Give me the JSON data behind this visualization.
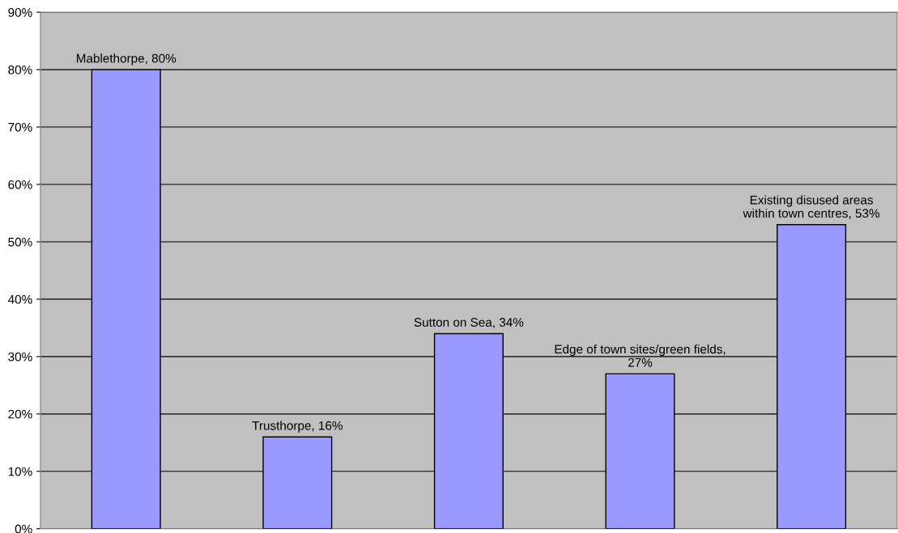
{
  "chart_data": {
    "type": "bar",
    "categories": [
      null,
      null,
      null,
      null,
      null
    ],
    "values": [
      80,
      16,
      34,
      27,
      53
    ],
    "value_labels": [
      "Mablethorpe, 80%",
      "Trusthorpe, 16%",
      "Sutton on Sea, 34%",
      "Edge of town sites/green fields,\n27%",
      "Existing disused areas\nwithin town centres, 53%"
    ],
    "color": "#9999ff",
    "ylim": [
      0,
      90
    ],
    "yticks": [
      {
        "value": 0,
        "label": "0%"
      },
      {
        "value": 10,
        "label": "10%"
      },
      {
        "value": 20,
        "label": "20%"
      },
      {
        "value": 30,
        "label": "30%"
      },
      {
        "value": 40,
        "label": "40%"
      },
      {
        "value": 50,
        "label": "50%"
      },
      {
        "value": 60,
        "label": "60%"
      },
      {
        "value": 70,
        "label": "70%"
      },
      {
        "value": 80,
        "label": "80%"
      },
      {
        "value": 90,
        "label": "90%"
      }
    ],
    "grid": "y",
    "legend": false
  }
}
